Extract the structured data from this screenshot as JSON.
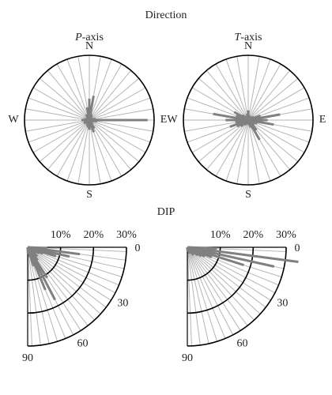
{
  "headings": {
    "direction": "Direction",
    "dip": "DIP"
  },
  "chart_data": [
    {
      "type": "rose",
      "title": "P-axis",
      "compass": [
        "N",
        "E",
        "S",
        "W"
      ],
      "rlim": [
        0,
        1
      ],
      "color": "#808080",
      "x": [
        0,
        10,
        20,
        30,
        40,
        50,
        60,
        70,
        80,
        90,
        100,
        110,
        120,
        130,
        140,
        150,
        160,
        170,
        180,
        190,
        200,
        210,
        220,
        230,
        240,
        250,
        260,
        270,
        280,
        290,
        300,
        310,
        320,
        330,
        340,
        350
      ],
      "values": [
        0.33,
        0.38,
        0.1,
        0.08,
        0.05,
        0.05,
        0.05,
        0.06,
        0.1,
        0.9,
        0.12,
        0.06,
        0.05,
        0.06,
        0.08,
        0.15,
        0.2,
        0.1,
        0.15,
        0.12,
        0.1,
        0.08,
        0.05,
        0.05,
        0.1,
        0.06,
        0.08,
        0.12,
        0.08,
        0.05,
        0.05,
        0.05,
        0.06,
        0.1,
        0.1,
        0.2
      ]
    },
    {
      "type": "rose",
      "title": "T-axis",
      "compass": [
        "N",
        "E",
        "S",
        "W"
      ],
      "rlim": [
        0,
        1
      ],
      "color": "#808080",
      "x": [
        0,
        10,
        20,
        30,
        40,
        50,
        60,
        70,
        80,
        90,
        100,
        110,
        120,
        130,
        140,
        150,
        160,
        170,
        180,
        190,
        200,
        210,
        220,
        230,
        240,
        250,
        260,
        270,
        280,
        290,
        300,
        310,
        320,
        330,
        340,
        350
      ],
      "values": [
        0.15,
        0.08,
        0.06,
        0.05,
        0.06,
        0.08,
        0.1,
        0.2,
        0.5,
        0.3,
        0.4,
        0.15,
        0.1,
        0.12,
        0.2,
        0.35,
        0.12,
        0.08,
        0.06,
        0.05,
        0.06,
        0.08,
        0.1,
        0.15,
        0.2,
        0.3,
        0.2,
        0.35,
        0.55,
        0.2,
        0.25,
        0.12,
        0.08,
        0.06,
        0.05,
        0.1
      ]
    },
    {
      "type": "quarter-rose",
      "rlim": [
        0,
        30
      ],
      "xlim": [
        0,
        90
      ],
      "color": "#808080",
      "rticks": [
        {
          "value": 10,
          "label": "10%"
        },
        {
          "value": 20,
          "label": "20%"
        },
        {
          "value": 30,
          "label": "30%"
        }
      ],
      "xticks": [
        0,
        30,
        60,
        90
      ],
      "x": [
        2.5,
        7.5,
        12.5,
        17.5,
        22.5,
        27.5,
        32.5,
        37.5,
        42.5,
        47.5,
        52.5,
        57.5,
        62.5,
        67.5,
        72.5,
        77.5,
        82.5,
        87.5
      ],
      "values": [
        6,
        16,
        13,
        9,
        5,
        4,
        3,
        3,
        4,
        4,
        5,
        11,
        18,
        14,
        6,
        3,
        2,
        2
      ]
    },
    {
      "type": "quarter-rose",
      "rlim": [
        0,
        30
      ],
      "xlim": [
        0,
        90
      ],
      "color": "#808080",
      "rticks": [
        {
          "value": 10,
          "label": "10%"
        },
        {
          "value": 20,
          "label": "20%"
        },
        {
          "value": 30,
          "label": "30%"
        }
      ],
      "xticks": [
        0,
        30,
        60,
        90
      ],
      "x": [
        2.5,
        7.5,
        12.5,
        17.5,
        22.5,
        27.5,
        32.5,
        37.5,
        42.5,
        47.5,
        52.5,
        57.5,
        62.5,
        67.5,
        72.5,
        77.5,
        82.5,
        87.5
      ],
      "values": [
        9,
        34,
        27,
        18,
        8,
        6,
        5,
        4,
        3,
        3,
        3,
        2,
        2,
        2,
        2,
        1,
        1,
        1
      ]
    }
  ]
}
